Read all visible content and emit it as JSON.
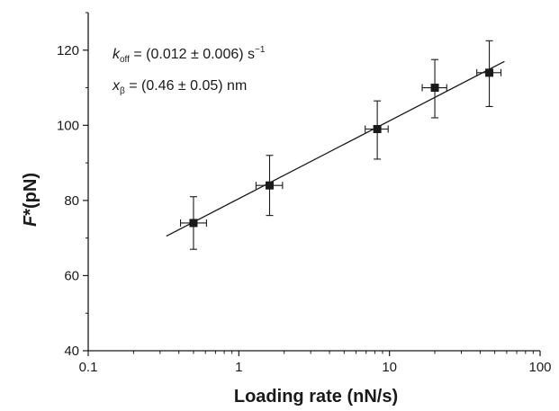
{
  "chart_data": {
    "type": "scatter",
    "xlabel": "Loading rate (nN/s)",
    "ylabel_symbol": "F",
    "ylabel_rest": "*(pN)",
    "xscale": "log",
    "xlim": [
      0.1,
      100
    ],
    "ylim": [
      40,
      130
    ],
    "x_ticks": [
      0.1,
      1,
      10,
      100
    ],
    "x_tick_labels": [
      "0.1",
      "1",
      "10",
      "100"
    ],
    "y_ticks": [
      40,
      60,
      80,
      100,
      120
    ],
    "y_tick_labels": [
      "40",
      "60",
      "80",
      "100",
      "120"
    ],
    "grid": false,
    "points": [
      {
        "x": 0.5,
        "y": 74,
        "x_lo": 0.41,
        "x_hi": 0.61,
        "y_lo": 67,
        "y_hi": 81
      },
      {
        "x": 1.6,
        "y": 84,
        "x_lo": 1.3,
        "x_hi": 1.95,
        "y_lo": 76,
        "y_hi": 92
      },
      {
        "x": 8.3,
        "y": 99,
        "x_lo": 6.9,
        "x_hi": 9.8,
        "y_lo": 91,
        "y_hi": 106.5
      },
      {
        "x": 20,
        "y": 110,
        "x_lo": 16.5,
        "x_hi": 24,
        "y_lo": 102,
        "y_hi": 117.5
      },
      {
        "x": 46,
        "y": 114,
        "x_lo": 38,
        "x_hi": 55,
        "y_lo": 105,
        "y_hi": 122.5
      }
    ],
    "fit_line": {
      "x": [
        0.33,
        58
      ],
      "y": [
        70.5,
        117
      ]
    },
    "annotations": {
      "koff_symbol": "k",
      "koff_sub": "off",
      "koff_rest": " = (0.012 ± 0.006) s",
      "koff_sup": "−1",
      "xbeta_symbol": "x",
      "xbeta_sub": "β",
      "xbeta_rest": " = (0.46 ± 0.05) nm"
    },
    "colors": {
      "axis": "#1a1a1a",
      "marker": "#1a1a1a",
      "line": "#1a1a1a"
    }
  }
}
